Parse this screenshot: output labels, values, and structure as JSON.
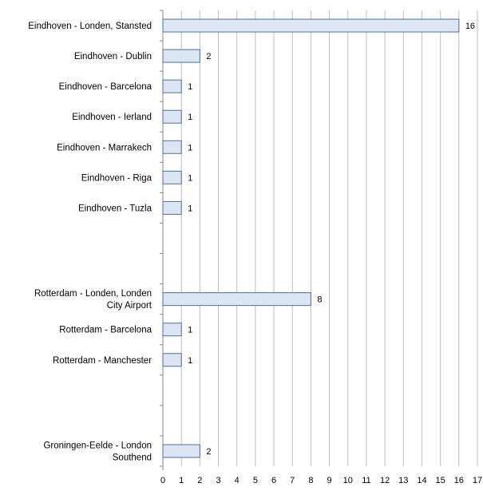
{
  "chart_data": {
    "type": "bar",
    "orientation": "horizontal",
    "categories": [
      "Eindhoven - Londen, Stansted",
      "Eindhoven - Dublin",
      "Eindhoven - Barcelona",
      "Eindhoven - Ierland",
      "Eindhoven - Marrakech",
      "Eindhoven - Riga",
      "Eindhoven - Tuzla",
      "",
      "",
      "Rotterdam - Londen, Londen City Airport",
      "Rotterdam - Barcelona",
      "Rotterdam - Manchester",
      "",
      "",
      "Groningen-Eelde - London Southend"
    ],
    "category_label_lines": [
      [
        "Eindhoven - Londen, Stansted"
      ],
      [
        "Eindhoven - Dublin"
      ],
      [
        "Eindhoven - Barcelona"
      ],
      [
        "Eindhoven - Ierland"
      ],
      [
        "Eindhoven - Marrakech"
      ],
      [
        "Eindhoven - Riga"
      ],
      [
        "Eindhoven - Tuzla"
      ],
      [],
      [],
      [
        "Rotterdam - Londen, Londen",
        "City Airport"
      ],
      [
        "Rotterdam - Barcelona"
      ],
      [
        "Rotterdam - Manchester"
      ],
      [],
      [],
      [
        "Groningen-Eelde - London",
        "Southend"
      ]
    ],
    "values": [
      16,
      2,
      1,
      1,
      1,
      1,
      1,
      null,
      null,
      8,
      1,
      1,
      null,
      null,
      2
    ],
    "data_labels": [
      "16",
      "2",
      "1",
      "1",
      "1",
      "1",
      "1",
      "",
      "",
      "8",
      "1",
      "1",
      "",
      "",
      "2"
    ],
    "xlim": [
      0,
      17
    ],
    "xticks": [
      "0",
      "1",
      "2",
      "3",
      "4",
      "5",
      "6",
      "7",
      "8",
      "9",
      "10",
      "11",
      "12",
      "13",
      "14",
      "15",
      "16",
      "17"
    ],
    "grid": "vertical",
    "legend": "none",
    "colors": {
      "bar_fill": "#dce6f2",
      "bar_stroke": "#4a6fa5",
      "grid": "#bfbfbf",
      "axis": "#868686",
      "text": "#000000"
    }
  }
}
